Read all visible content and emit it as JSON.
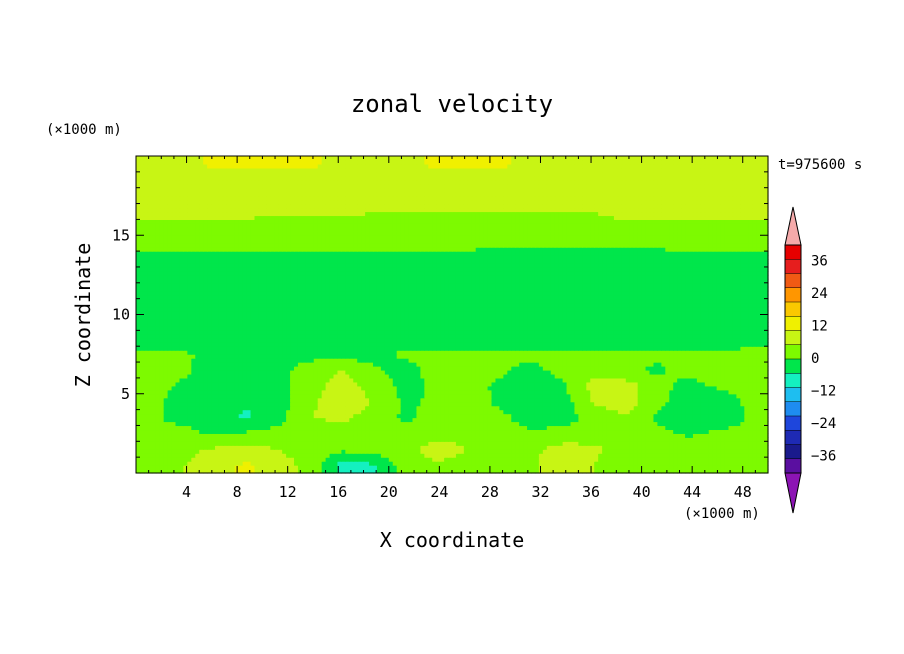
{
  "chart_data": {
    "type": "heatmap",
    "title": "zonal velocity",
    "xlabel": "X coordinate",
    "ylabel": "Z coordinate",
    "x_unit": "(×1000 m)",
    "y_unit": "(×1000 m)",
    "time_label": "t=975600 s",
    "xlim": [
      0,
      50
    ],
    "ylim": [
      0,
      20
    ],
    "x_ticks": [
      4,
      8,
      12,
      16,
      20,
      24,
      28,
      32,
      36,
      40,
      44,
      48
    ],
    "y_ticks": [
      5,
      10,
      15
    ],
    "colorbar": {
      "levels": [
        -42,
        -36,
        -30,
        -24,
        -18,
        -12,
        -6,
        0,
        6,
        12,
        18,
        24,
        30,
        36,
        42
      ],
      "tick_values": [
        -36,
        -24,
        -12,
        0,
        12,
        24,
        36
      ],
      "tick_labels": [
        "−36",
        "−24",
        "−12",
        "0",
        "12",
        "24",
        "36"
      ],
      "band_colors": [
        "#5a0fa0",
        "#1a1a8c",
        "#1e2ab4",
        "#1e46dc",
        "#1e8cf0",
        "#1ebef0",
        "#14f0c0",
        "#00e64b",
        "#7dfa00",
        "#c8f514",
        "#f0f000",
        "#fac800",
        "#ff9600",
        "#f05a14",
        "#e61e1e",
        "#e60000"
      ],
      "under_color": "#8c14b4",
      "over_color": "#f5aaaa"
    },
    "field_description_values": {
      "rows_z": [
        19.5,
        18.5,
        17.5,
        16.5,
        15.5,
        14.5,
        13.5,
        12.5,
        11.5,
        10.5,
        9.5,
        8.5,
        7.5,
        6.5,
        5.5,
        4.5,
        3.5,
        2.5,
        1.5,
        0.5
      ],
      "cols_x": [
        1.25,
        3.75,
        6.25,
        8.75,
        11.25,
        13.75,
        16.25,
        18.75,
        21.25,
        23.75,
        26.25,
        28.75,
        31.25,
        33.75,
        36.25,
        38.75,
        41.25,
        43.75,
        46.25,
        48.75
      ],
      "u": [
        [
          10,
          10,
          13,
          13,
          13,
          13,
          10,
          10,
          10,
          13,
          13,
          13,
          10,
          10,
          10,
          10,
          10,
          10,
          10,
          10
        ],
        [
          9,
          10,
          10,
          10,
          10,
          9,
          9,
          9,
          10,
          10,
          10,
          10,
          9,
          9,
          9,
          9,
          10,
          10,
          10,
          9
        ],
        [
          7,
          7,
          7,
          6,
          6,
          6,
          6,
          7,
          7,
          7,
          7,
          7,
          7,
          7,
          7,
          7,
          7,
          7,
          7,
          7
        ],
        [
          8,
          9,
          8,
          8,
          7,
          7,
          7,
          6,
          6,
          6,
          6,
          6,
          6,
          6,
          6,
          8,
          8,
          9,
          9,
          8
        ],
        [
          3,
          3,
          3,
          3,
          3,
          3,
          4,
          4,
          4,
          4,
          4,
          4,
          4,
          4,
          4,
          4,
          4,
          4,
          3,
          3
        ],
        [
          2,
          2,
          2,
          2,
          2,
          2,
          2,
          2,
          2,
          2,
          2,
          1,
          1,
          1,
          1,
          1,
          1,
          2,
          2,
          2
        ],
        [
          -2,
          -2,
          -2,
          -2,
          -2,
          -3,
          -3,
          -3,
          -3,
          -3,
          -3,
          -3,
          -3,
          -3,
          -3,
          -3,
          -2,
          -2,
          -2,
          -2
        ],
        [
          -4,
          -4,
          -4,
          -4,
          -4,
          -4,
          -4,
          -4,
          -4,
          -4,
          -4,
          -4,
          -4,
          -4,
          -4,
          -4,
          -4,
          -4,
          -4,
          -4
        ],
        [
          -4,
          -4,
          -4,
          -4,
          -4,
          -4,
          -4,
          -4,
          -4,
          -4,
          -4,
          -4,
          -4,
          -4,
          -4,
          -4,
          -4,
          -4,
          -4,
          -4
        ],
        [
          -4,
          -4,
          -4,
          -4,
          -4,
          -4,
          -5,
          -5,
          -5,
          -4,
          -4,
          -4,
          -4,
          -4,
          -4,
          -4,
          -4,
          -4,
          -4,
          -4
        ],
        [
          -4,
          -4,
          -4,
          -4,
          -4,
          -4,
          -4,
          -5,
          -5,
          -4,
          -4,
          -4,
          -4,
          -4,
          -4,
          -4,
          -4,
          -4,
          -4,
          -4
        ],
        [
          -4,
          -4,
          -3,
          -3,
          -4,
          -4,
          -4,
          -3,
          -3,
          -3,
          -4,
          -4,
          -4,
          -4,
          -4,
          -4,
          -4,
          -4,
          -4,
          -3
        ],
        [
          2,
          1,
          -2,
          -2,
          -1,
          -2,
          -2,
          -2,
          1,
          1,
          1,
          1,
          2,
          2,
          2,
          2,
          1,
          1,
          2,
          2
        ],
        [
          2,
          1,
          -3,
          -4,
          -2,
          3,
          6,
          1,
          -2,
          2,
          3,
          1,
          -2,
          2,
          5,
          1,
          -1,
          2,
          3,
          2
        ],
        [
          2,
          -1,
          -4,
          -4,
          -2,
          3,
          9,
          4,
          -2,
          1,
          2,
          -1,
          -4,
          -1,
          8,
          9,
          2,
          -2,
          1,
          3
        ],
        [
          1,
          -2,
          -6,
          -5,
          -3,
          5,
          9,
          6,
          -1,
          1,
          5,
          -2,
          -5,
          -3,
          7,
          9,
          2,
          -4,
          -4,
          2
        ],
        [
          1,
          -2,
          -4,
          -7,
          -2,
          6,
          7,
          4,
          -1,
          2,
          6,
          3,
          -5,
          -3,
          2,
          5,
          -1,
          -6,
          -5,
          1
        ],
        [
          2,
          2,
          -1,
          1,
          2,
          2,
          4,
          3,
          2,
          4,
          4,
          4,
          2,
          3,
          4,
          1,
          2,
          -1,
          2,
          3
        ],
        [
          3,
          4,
          7,
          8,
          6,
          3,
          1,
          2,
          4,
          9,
          6,
          3,
          5,
          8,
          7,
          4,
          6,
          4,
          6,
          4
        ],
        [
          3,
          6,
          10,
          13,
          9,
          4,
          -8,
          -7,
          3,
          5,
          3,
          2,
          5,
          9,
          6,
          2,
          5,
          6,
          4,
          3
        ]
      ]
    }
  }
}
